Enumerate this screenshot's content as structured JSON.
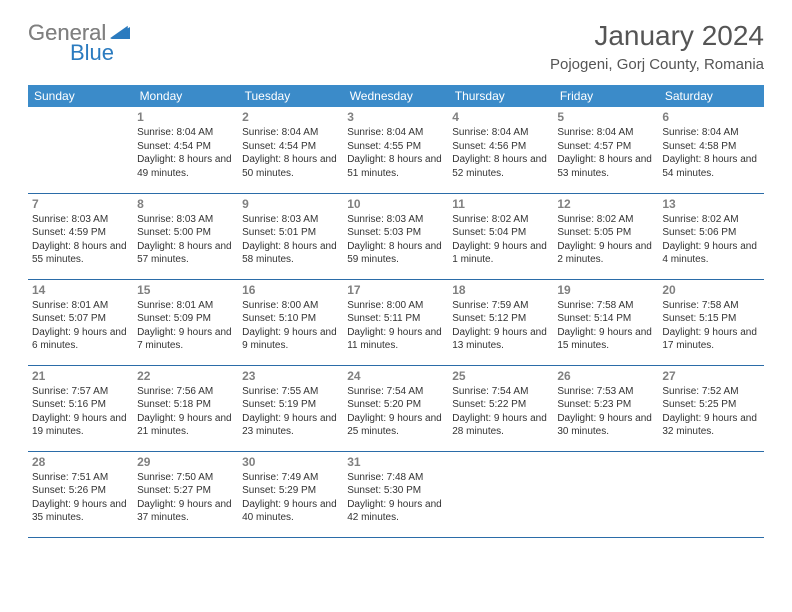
{
  "logo": {
    "gray": "General",
    "blue": "Blue"
  },
  "title": "January 2024",
  "location": "Pojogeni, Gorj County, Romania",
  "colors": {
    "header_bg": "#3b8bc9",
    "header_text": "#ffffff",
    "border": "#2b6ca8",
    "daynum": "#808080",
    "logo_gray": "#808080",
    "logo_blue": "#2b7bbf"
  },
  "day_headers": [
    "Sunday",
    "Monday",
    "Tuesday",
    "Wednesday",
    "Thursday",
    "Friday",
    "Saturday"
  ],
  "weeks": [
    [
      null,
      {
        "n": "1",
        "sr": "8:04 AM",
        "ss": "4:54 PM",
        "dl": "8 hours and 49 minutes."
      },
      {
        "n": "2",
        "sr": "8:04 AM",
        "ss": "4:54 PM",
        "dl": "8 hours and 50 minutes."
      },
      {
        "n": "3",
        "sr": "8:04 AM",
        "ss": "4:55 PM",
        "dl": "8 hours and 51 minutes."
      },
      {
        "n": "4",
        "sr": "8:04 AM",
        "ss": "4:56 PM",
        "dl": "8 hours and 52 minutes."
      },
      {
        "n": "5",
        "sr": "8:04 AM",
        "ss": "4:57 PM",
        "dl": "8 hours and 53 minutes."
      },
      {
        "n": "6",
        "sr": "8:04 AM",
        "ss": "4:58 PM",
        "dl": "8 hours and 54 minutes."
      }
    ],
    [
      {
        "n": "7",
        "sr": "8:03 AM",
        "ss": "4:59 PM",
        "dl": "8 hours and 55 minutes."
      },
      {
        "n": "8",
        "sr": "8:03 AM",
        "ss": "5:00 PM",
        "dl": "8 hours and 57 minutes."
      },
      {
        "n": "9",
        "sr": "8:03 AM",
        "ss": "5:01 PM",
        "dl": "8 hours and 58 minutes."
      },
      {
        "n": "10",
        "sr": "8:03 AM",
        "ss": "5:03 PM",
        "dl": "8 hours and 59 minutes."
      },
      {
        "n": "11",
        "sr": "8:02 AM",
        "ss": "5:04 PM",
        "dl": "9 hours and 1 minute."
      },
      {
        "n": "12",
        "sr": "8:02 AM",
        "ss": "5:05 PM",
        "dl": "9 hours and 2 minutes."
      },
      {
        "n": "13",
        "sr": "8:02 AM",
        "ss": "5:06 PM",
        "dl": "9 hours and 4 minutes."
      }
    ],
    [
      {
        "n": "14",
        "sr": "8:01 AM",
        "ss": "5:07 PM",
        "dl": "9 hours and 6 minutes."
      },
      {
        "n": "15",
        "sr": "8:01 AM",
        "ss": "5:09 PM",
        "dl": "9 hours and 7 minutes."
      },
      {
        "n": "16",
        "sr": "8:00 AM",
        "ss": "5:10 PM",
        "dl": "9 hours and 9 minutes."
      },
      {
        "n": "17",
        "sr": "8:00 AM",
        "ss": "5:11 PM",
        "dl": "9 hours and 11 minutes."
      },
      {
        "n": "18",
        "sr": "7:59 AM",
        "ss": "5:12 PM",
        "dl": "9 hours and 13 minutes."
      },
      {
        "n": "19",
        "sr": "7:58 AM",
        "ss": "5:14 PM",
        "dl": "9 hours and 15 minutes."
      },
      {
        "n": "20",
        "sr": "7:58 AM",
        "ss": "5:15 PM",
        "dl": "9 hours and 17 minutes."
      }
    ],
    [
      {
        "n": "21",
        "sr": "7:57 AM",
        "ss": "5:16 PM",
        "dl": "9 hours and 19 minutes."
      },
      {
        "n": "22",
        "sr": "7:56 AM",
        "ss": "5:18 PM",
        "dl": "9 hours and 21 minutes."
      },
      {
        "n": "23",
        "sr": "7:55 AM",
        "ss": "5:19 PM",
        "dl": "9 hours and 23 minutes."
      },
      {
        "n": "24",
        "sr": "7:54 AM",
        "ss": "5:20 PM",
        "dl": "9 hours and 25 minutes."
      },
      {
        "n": "25",
        "sr": "7:54 AM",
        "ss": "5:22 PM",
        "dl": "9 hours and 28 minutes."
      },
      {
        "n": "26",
        "sr": "7:53 AM",
        "ss": "5:23 PM",
        "dl": "9 hours and 30 minutes."
      },
      {
        "n": "27",
        "sr": "7:52 AM",
        "ss": "5:25 PM",
        "dl": "9 hours and 32 minutes."
      }
    ],
    [
      {
        "n": "28",
        "sr": "7:51 AM",
        "ss": "5:26 PM",
        "dl": "9 hours and 35 minutes."
      },
      {
        "n": "29",
        "sr": "7:50 AM",
        "ss": "5:27 PM",
        "dl": "9 hours and 37 minutes."
      },
      {
        "n": "30",
        "sr": "7:49 AM",
        "ss": "5:29 PM",
        "dl": "9 hours and 40 minutes."
      },
      {
        "n": "31",
        "sr": "7:48 AM",
        "ss": "5:30 PM",
        "dl": "9 hours and 42 minutes."
      },
      null,
      null,
      null
    ]
  ],
  "labels": {
    "sunrise_prefix": "Sunrise: ",
    "sunset_prefix": "Sunset: ",
    "daylight_prefix": "Daylight: "
  }
}
